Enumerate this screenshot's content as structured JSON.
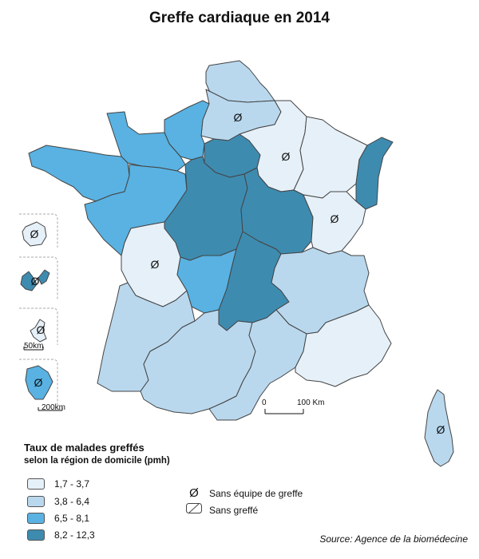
{
  "title": "Greffe cardiaque en 2014",
  "legend": {
    "title": "Taux de malades greffés",
    "subtitle": "selon la région de domicile (pmh)",
    "classes": [
      {
        "label": "1,7 - 3,7",
        "color": "#e6f0f8"
      },
      {
        "label": "3,8 - 6,4",
        "color": "#b9d8ee"
      },
      {
        "label": "6,5 - 8,1",
        "color": "#59b2e2"
      },
      {
        "label": "8,2 - 12,3",
        "color": "#3e8bb0"
      }
    ],
    "symbols": [
      {
        "icon": "Ø",
        "label": "Sans équipe de greffe"
      },
      {
        "icon": "⧄",
        "label": "Sans greffé"
      }
    ]
  },
  "scale_main": {
    "start": "0",
    "end": "100 Km"
  },
  "scale_inset_small": "50km",
  "scale_inset_large": "200km",
  "source": "Source: Agence de la biomédecine",
  "no_team_symbol": "Ø",
  "colors": {
    "border": "#444444",
    "class1": "#e6f0f8",
    "class2": "#b9d8ee",
    "class3": "#59b2e2",
    "class4": "#3e8bb0"
  },
  "regions": [
    {
      "name": "Nord-Pas-de-Calais",
      "class": 2,
      "no_team": false
    },
    {
      "name": "Picardie",
      "class": 2,
      "no_team": true
    },
    {
      "name": "Haute-Normandie",
      "class": 3,
      "no_team": false
    },
    {
      "name": "Basse-Normandie",
      "class": 3,
      "no_team": false
    },
    {
      "name": "Bretagne",
      "class": 3,
      "no_team": false
    },
    {
      "name": "Pays de la Loire",
      "class": 3,
      "no_team": false
    },
    {
      "name": "Île-de-France",
      "class": 4,
      "no_team": false
    },
    {
      "name": "Centre",
      "class": 4,
      "no_team": false
    },
    {
      "name": "Champagne-Ardenne",
      "class": 1,
      "no_team": true
    },
    {
      "name": "Lorraine",
      "class": 1,
      "no_team": false
    },
    {
      "name": "Alsace",
      "class": 4,
      "no_team": false
    },
    {
      "name": "Bourgogne",
      "class": 4,
      "no_team": false
    },
    {
      "name": "Franche-Comté",
      "class": 1,
      "no_team": true
    },
    {
      "name": "Poitou-Charentes",
      "class": 1,
      "no_team": true
    },
    {
      "name": "Limousin",
      "class": 3,
      "no_team": false
    },
    {
      "name": "Auvergne",
      "class": 4,
      "no_team": false
    },
    {
      "name": "Rhône-Alpes",
      "class": 2,
      "no_team": false
    },
    {
      "name": "Aquitaine",
      "class": 2,
      "no_team": false
    },
    {
      "name": "Midi-Pyrénées",
      "class": 2,
      "no_team": false
    },
    {
      "name": "Languedoc-Roussillon",
      "class": 2,
      "no_team": false
    },
    {
      "name": "Provence-Alpes-Côte d'Azur",
      "class": 1,
      "no_team": false
    },
    {
      "name": "Corse",
      "class": 2,
      "no_team": true
    },
    {
      "name": "La Réunion",
      "class": 1,
      "no_team": true
    },
    {
      "name": "Guadeloupe",
      "class": 4,
      "no_team": true
    },
    {
      "name": "Martinique",
      "class": 1,
      "no_team": true
    },
    {
      "name": "Guyane",
      "class": 3,
      "no_team": true
    }
  ]
}
